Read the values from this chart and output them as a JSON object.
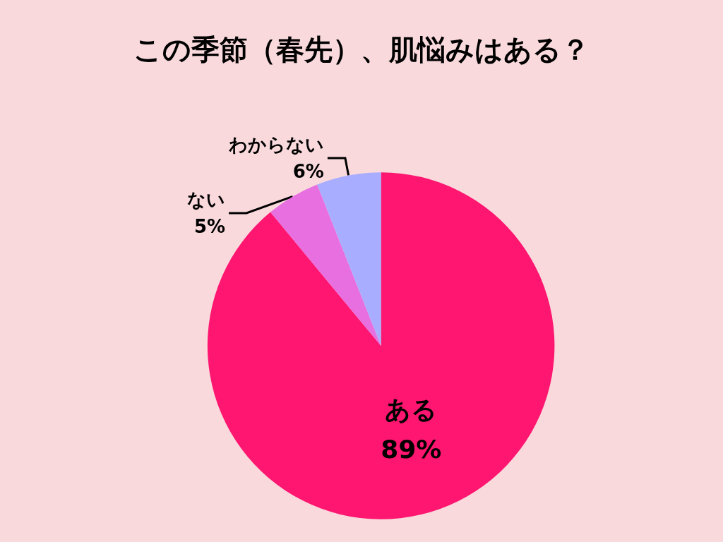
{
  "chart_data": {
    "type": "pie",
    "title": "この季節（春先）、肌悩みはある？",
    "categories": [
      "ある",
      "ない",
      "わからない"
    ],
    "values": [
      89,
      5,
      6
    ],
    "value_labels": [
      "89%",
      "5%",
      "6%"
    ],
    "colors": [
      "#fe1670",
      "#e86fe0",
      "#a9adff"
    ]
  }
}
